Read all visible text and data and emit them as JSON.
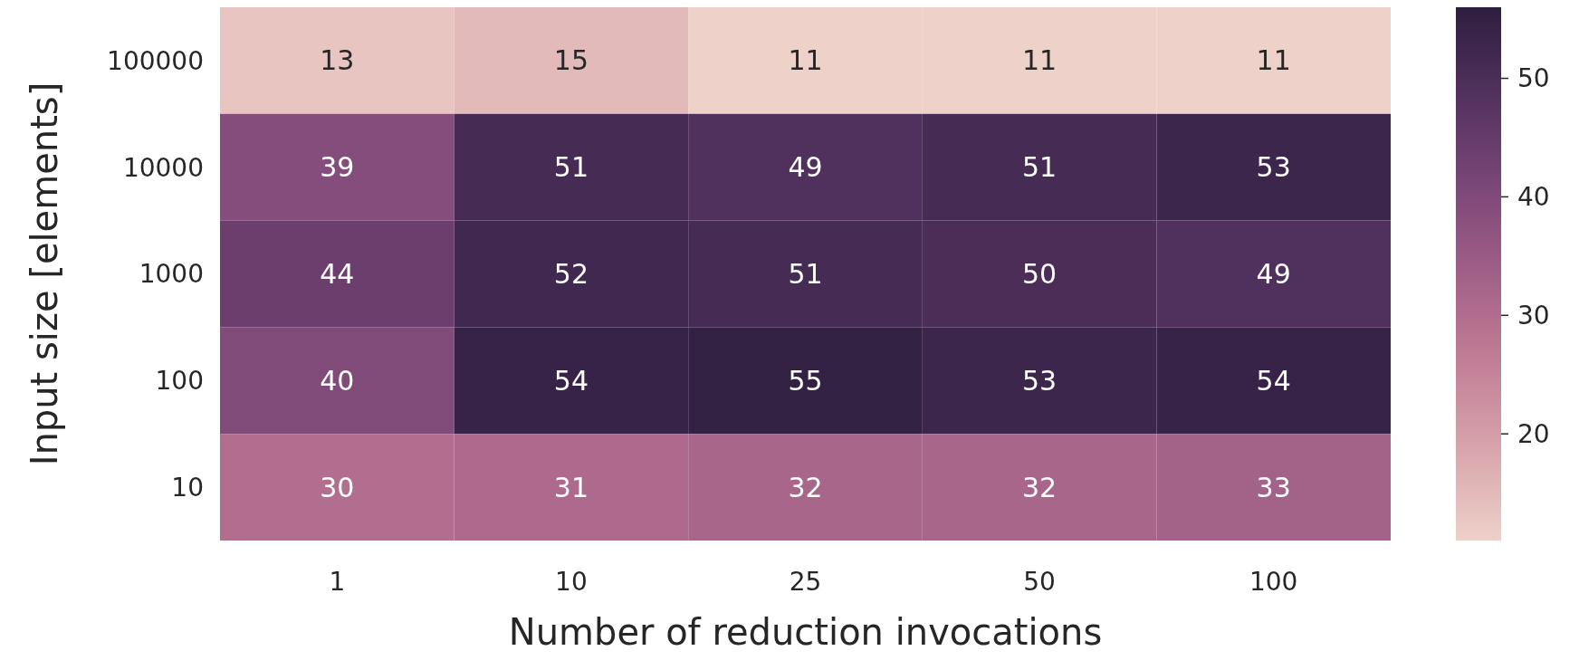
{
  "chart_data": {
    "type": "heatmap",
    "xlabel": "Number of reduction invocations",
    "ylabel": "Input size [elements]",
    "categories": [
      "1",
      "10",
      "25",
      "50",
      "100"
    ],
    "y_categories": [
      "100000",
      "10000",
      "1000",
      "100",
      "10"
    ],
    "cells": [
      [
        13,
        15,
        11,
        11,
        11
      ],
      [
        39,
        51,
        49,
        51,
        53
      ],
      [
        44,
        52,
        51,
        50,
        49
      ],
      [
        40,
        54,
        55,
        53,
        54
      ],
      [
        30,
        31,
        32,
        32,
        33
      ]
    ],
    "data_labels": true,
    "clim": [
      11,
      56
    ],
    "cticks": [
      20,
      30,
      40,
      50
    ]
  }
}
